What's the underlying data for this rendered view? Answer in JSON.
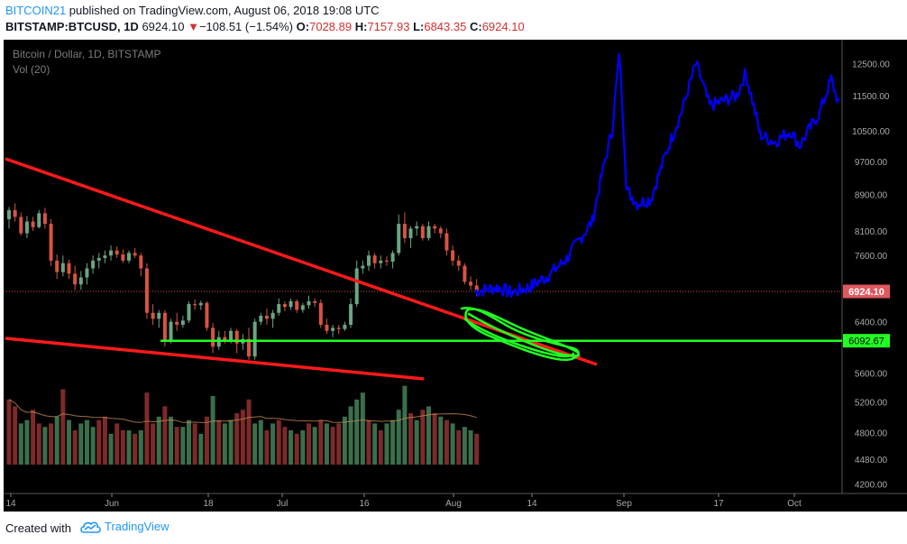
{
  "header": {
    "author": "BITCOIN21",
    "published_text": " published on TradingView.com, August 06, 2018 19:08 UTC",
    "symbol": "BITSTAMP:BTCUSD, 1D",
    "last": "6924.10",
    "change_arrow": "▼",
    "change": "−108.51 (−1.54%)",
    "o_label": "O:",
    "o_value": "7028.89",
    "h_label": "H:",
    "h_value": "7157.93",
    "l_label": "L:",
    "l_value": "6843.35",
    "c_label": "C:",
    "c_value": "6924.10"
  },
  "footer": {
    "created_with": "Created with",
    "brand": "TradingView",
    "logo_icon": "tradingview-cloud-icon"
  },
  "colors": {
    "background": "#000000",
    "up_candle": "#6ba583",
    "down_candle": "#d75442",
    "vol_up": "#3b6f4c",
    "vol_down": "#7d2a2a",
    "trendline": "#ff1a1a",
    "support": "#22ff22",
    "projection": "#0000ff",
    "accent": "#2196f3"
  },
  "chart_data": {
    "type": "candlestick",
    "title": "Bitcoin / Dollar, 1D, BITSTAMP",
    "indicator_label": "Vol (20)",
    "x_tick_labels": [
      "14",
      "Jun",
      "18",
      "Jul",
      "16",
      "Aug",
      "14",
      "Sep",
      "17",
      "Oct"
    ],
    "y_tick_labels": [
      "12500.00",
      "11500.00",
      "10500.00",
      "9700.00",
      "8900.00",
      "8100.00",
      "7600.00",
      "6400.00",
      "5600.00",
      "5200.00",
      "4800.00",
      "4480.00",
      "4200.00"
    ],
    "y_axis": {
      "scale": "log",
      "range": [
        4100,
        13300
      ]
    },
    "last_price_label": "6924.10",
    "last_price": 6924.1,
    "support_label": "6092.67",
    "support_level": 6092.67,
    "candles": [
      [
        8350,
        8620,
        8150,
        8550
      ],
      [
        8550,
        8700,
        8300,
        8400
      ],
      [
        8400,
        8500,
        8000,
        8050
      ],
      [
        8050,
        8420,
        7950,
        8300
      ],
      [
        8300,
        8400,
        8100,
        8180
      ],
      [
        8180,
        8550,
        8150,
        8480
      ],
      [
        8480,
        8600,
        8150,
        8250
      ],
      [
        8250,
        8350,
        7400,
        7500
      ],
      [
        7500,
        7620,
        7150,
        7280
      ],
      [
        7280,
        7600,
        7200,
        7450
      ],
      [
        7450,
        7520,
        7150,
        7250
      ],
      [
        7250,
        7400,
        6950,
        7050
      ],
      [
        7050,
        7300,
        6950,
        7180
      ],
      [
        7180,
        7450,
        7050,
        7350
      ],
      [
        7350,
        7600,
        7250,
        7500
      ],
      [
        7500,
        7650,
        7350,
        7550
      ],
      [
        7550,
        7700,
        7450,
        7600
      ],
      [
        7600,
        7800,
        7500,
        7700
      ],
      [
        7700,
        7780,
        7550,
        7620
      ],
      [
        7620,
        7720,
        7450,
        7500
      ],
      [
        7500,
        7700,
        7450,
        7650
      ],
      [
        7650,
        7750,
        7550,
        7600
      ],
      [
        7600,
        7650,
        7200,
        7350
      ],
      [
        7350,
        7450,
        6450,
        6550
      ],
      [
        6550,
        6700,
        6350,
        6450
      ],
      [
        6450,
        6600,
        6300,
        6550
      ],
      [
        6550,
        6600,
        6000,
        6100
      ],
      [
        6100,
        6450,
        6050,
        6400
      ],
      [
        6400,
        6550,
        6250,
        6350
      ],
      [
        6350,
        6500,
        6300,
        6420
      ],
      [
        6420,
        6750,
        6380,
        6700
      ],
      [
        6700,
        6780,
        6600,
        6680
      ],
      [
        6680,
        6760,
        6600,
        6720
      ],
      [
        6720,
        6750,
        6250,
        6300
      ],
      [
        6300,
        6380,
        5900,
        6000
      ],
      [
        6000,
        6250,
        5950,
        6150
      ],
      [
        6150,
        6250,
        6050,
        6100
      ],
      [
        6100,
        6300,
        6050,
        6250
      ],
      [
        6250,
        6280,
        5900,
        6050
      ],
      [
        6050,
        6200,
        5950,
        6120
      ],
      [
        6120,
        6300,
        5800,
        5850
      ],
      [
        5850,
        6450,
        5800,
        6400
      ],
      [
        6400,
        6550,
        6350,
        6500
      ],
      [
        6500,
        6620,
        6350,
        6450
      ],
      [
        6450,
        6600,
        6300,
        6550
      ],
      [
        6550,
        6800,
        6500,
        6700
      ],
      [
        6700,
        6750,
        6580,
        6650
      ],
      [
        6650,
        6800,
        6600,
        6750
      ],
      [
        6750,
        6780,
        6550,
        6600
      ],
      [
        6600,
        6720,
        6550,
        6680
      ],
      [
        6680,
        6850,
        6620,
        6750
      ],
      [
        6750,
        6800,
        6650,
        6720
      ],
      [
        6720,
        6780,
        6300,
        6350
      ],
      [
        6350,
        6450,
        6200,
        6250
      ],
      [
        6250,
        6350,
        6150,
        6300
      ],
      [
        6300,
        6350,
        6200,
        6280
      ],
      [
        6280,
        6400,
        6250,
        6350
      ],
      [
        6350,
        6800,
        6300,
        6700
      ],
      [
        6700,
        7500,
        6650,
        7350
      ],
      [
        7350,
        7500,
        7250,
        7400
      ],
      [
        7400,
        7700,
        7300,
        7600
      ],
      [
        7600,
        7650,
        7350,
        7450
      ],
      [
        7450,
        7600,
        7350,
        7500
      ],
      [
        7500,
        7580,
        7400,
        7480
      ],
      [
        7480,
        7700,
        7350,
        7650
      ],
      [
        7650,
        8450,
        7600,
        8250
      ],
      [
        8250,
        8500,
        7850,
        7950
      ],
      [
        7950,
        8200,
        7750,
        8150
      ],
      [
        8150,
        8300,
        8000,
        8200
      ],
      [
        8200,
        8250,
        7900,
        7950
      ],
      [
        7950,
        8300,
        7900,
        8200
      ],
      [
        8200,
        8250,
        8050,
        8150
      ],
      [
        8150,
        8200,
        7950,
        8050
      ],
      [
        8050,
        8150,
        7600,
        7700
      ],
      [
        7700,
        7800,
        7400,
        7500
      ],
      [
        7500,
        7600,
        7300,
        7400
      ],
      [
        7400,
        7450,
        7050,
        7100
      ],
      [
        7100,
        7200,
        6950,
        7030
      ],
      [
        7030,
        7150,
        6840,
        6924
      ]
    ],
    "volume": [
      [
        19,
        0
      ],
      [
        17,
        0
      ],
      [
        12,
        1
      ],
      [
        13,
        1
      ],
      [
        16,
        0
      ],
      [
        12,
        0
      ],
      [
        11,
        1
      ],
      [
        12,
        0
      ],
      [
        14,
        1
      ],
      [
        22,
        0
      ],
      [
        13,
        1
      ],
      [
        10,
        0
      ],
      [
        12,
        1
      ],
      [
        13,
        1
      ],
      [
        11,
        1
      ],
      [
        13,
        0
      ],
      [
        14,
        0
      ],
      [
        9,
        1
      ],
      [
        12,
        0
      ],
      [
        10,
        0
      ],
      [
        10,
        1
      ],
      [
        9,
        0
      ],
      [
        10,
        1
      ],
      [
        21,
        0
      ],
      [
        12,
        0
      ],
      [
        14,
        1
      ],
      [
        17,
        0
      ],
      [
        14,
        1
      ],
      [
        11,
        0
      ],
      [
        11,
        1
      ],
      [
        13,
        1
      ],
      [
        12,
        0
      ],
      [
        9,
        1
      ],
      [
        14,
        0
      ],
      [
        20,
        1
      ],
      [
        13,
        0
      ],
      [
        12,
        1
      ],
      [
        13,
        1
      ],
      [
        15,
        0
      ],
      [
        16,
        0
      ],
      [
        19,
        0
      ],
      [
        12,
        1
      ],
      [
        13,
        1
      ],
      [
        10,
        0
      ],
      [
        12,
        1
      ],
      [
        13,
        0
      ],
      [
        11,
        0
      ],
      [
        10,
        1
      ],
      [
        9,
        0
      ],
      [
        10,
        1
      ],
      [
        12,
        0
      ],
      [
        11,
        1
      ],
      [
        13,
        0
      ],
      [
        12,
        1
      ],
      [
        11,
        0
      ],
      [
        12,
        0
      ],
      [
        14,
        1
      ],
      [
        17,
        1
      ],
      [
        19,
        1
      ],
      [
        21,
        1
      ],
      [
        13,
        0
      ],
      [
        12,
        1
      ],
      [
        10,
        0
      ],
      [
        12,
        1
      ],
      [
        13,
        1
      ],
      [
        16,
        1
      ],
      [
        23,
        1
      ],
      [
        15,
        0
      ],
      [
        13,
        1
      ],
      [
        16,
        0
      ],
      [
        17,
        1
      ],
      [
        15,
        0
      ],
      [
        14,
        1
      ],
      [
        13,
        0
      ],
      [
        12,
        1
      ],
      [
        10,
        0
      ],
      [
        11,
        1
      ],
      [
        10,
        1
      ],
      [
        9,
        0
      ]
    ]
  }
}
